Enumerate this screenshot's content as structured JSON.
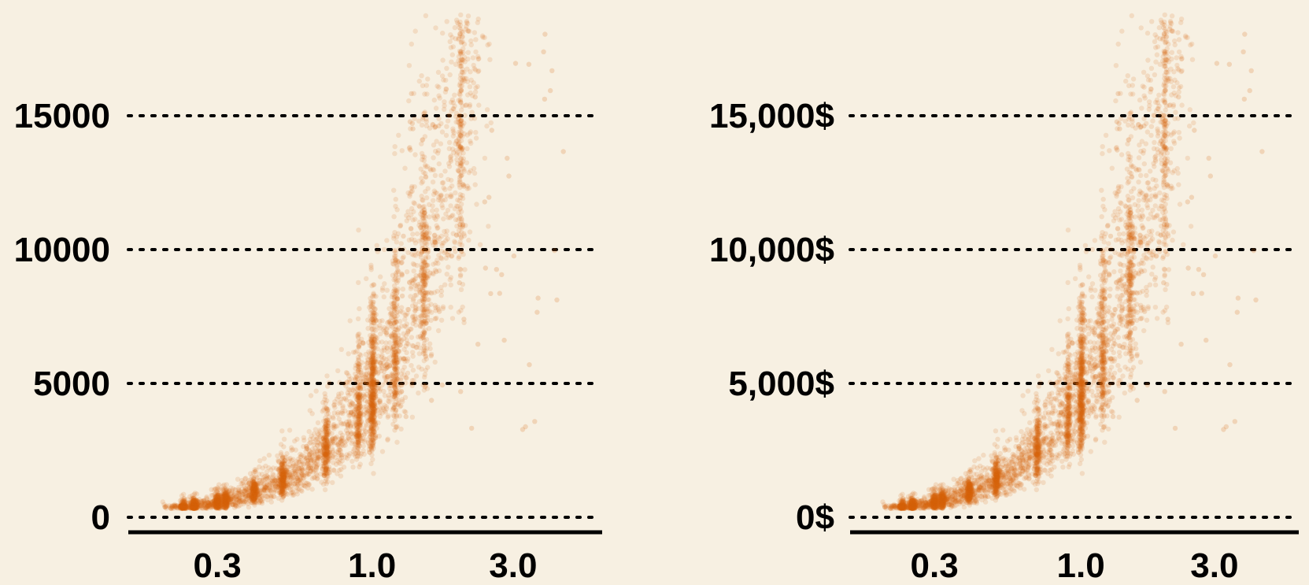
{
  "chart_data": [
    {
      "type": "scatter",
      "title": "",
      "xlabel": "",
      "ylabel": "",
      "x_scale": "log",
      "xlim": [
        0.15,
        6.0
      ],
      "ylim": [
        0,
        19000
      ],
      "x_ticks": [
        0.3,
        1.0,
        3.0
      ],
      "x_tick_labels": [
        "0.3",
        "1.0",
        "3.0"
      ],
      "y_ticks": [
        0,
        5000,
        10000,
        15000
      ],
      "y_tick_labels": [
        "0",
        "5000",
        "10000",
        "15000"
      ],
      "grid": "horizontal dotted",
      "legend": "none",
      "point_color": "#d9620f",
      "point_opacity": 0.15,
      "series_summary": [
        {
          "x": 0.23,
          "y_low": 326,
          "y_high": 700
        },
        {
          "x": 0.3,
          "y_low": 400,
          "y_high": 1200
        },
        {
          "x": 0.4,
          "y_low": 500,
          "y_high": 1600
        },
        {
          "x": 0.5,
          "y_low": 800,
          "y_high": 2500
        },
        {
          "x": 0.7,
          "y_low": 1500,
          "y_high": 5000
        },
        {
          "x": 0.9,
          "y_low": 2500,
          "y_high": 6000
        },
        {
          "x": 1.0,
          "y_low": 3000,
          "y_high": 12000
        },
        {
          "x": 1.5,
          "y_low": 4000,
          "y_high": 18823
        },
        {
          "x": 2.0,
          "y_low": 6000,
          "y_high": 18823
        }
      ]
    },
    {
      "type": "scatter",
      "title": "",
      "xlabel": "",
      "ylabel": "",
      "x_scale": "log",
      "xlim": [
        0.15,
        6.0
      ],
      "ylim": [
        0,
        19000
      ],
      "x_ticks": [
        0.3,
        1.0,
        3.0
      ],
      "x_tick_labels": [
        "0.3",
        "1.0",
        "3.0"
      ],
      "y_ticks": [
        0,
        5000,
        10000,
        15000
      ],
      "y_tick_labels": [
        "0$",
        "5,000$",
        "10,000$",
        "15,000$"
      ],
      "grid": "horizontal dotted",
      "legend": "none",
      "point_color": "#d9620f",
      "point_opacity": 0.15,
      "series_summary": [
        {
          "x": 0.23,
          "y_low": 326,
          "y_high": 700
        },
        {
          "x": 0.3,
          "y_low": 400,
          "y_high": 1200
        },
        {
          "x": 0.4,
          "y_low": 500,
          "y_high": 1600
        },
        {
          "x": 0.5,
          "y_low": 800,
          "y_high": 2500
        },
        {
          "x": 0.7,
          "y_low": 1500,
          "y_high": 5000
        },
        {
          "x": 0.9,
          "y_low": 2500,
          "y_high": 6000
        },
        {
          "x": 1.0,
          "y_low": 3000,
          "y_high": 12000
        },
        {
          "x": 1.5,
          "y_low": 4000,
          "y_high": 18823
        },
        {
          "x": 2.0,
          "y_low": 6000,
          "y_high": 18823
        }
      ]
    }
  ],
  "colors": {
    "background": "#f7f0e2",
    "points": "#d9620f",
    "grid": "#000000",
    "axis": "#000000"
  }
}
